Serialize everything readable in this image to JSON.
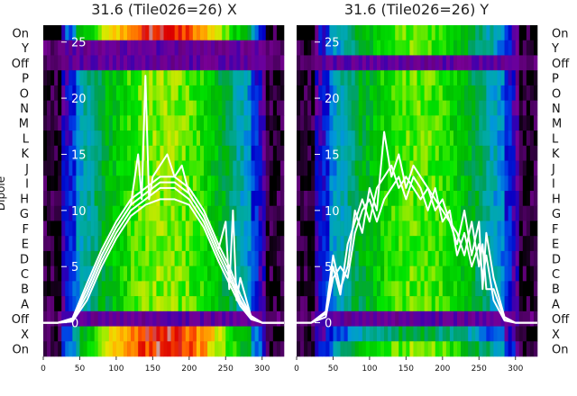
{
  "chart_data": [
    {
      "type": "heatmap",
      "title": "31.6 (Tile026=26) X",
      "ylabel": "Dipole",
      "x_ticks": [
        0,
        50,
        100,
        150,
        200,
        250,
        300
      ],
      "xlim": [
        0,
        330
      ],
      "row_labels": [
        "On",
        "Y",
        "Off",
        "P",
        "O",
        "N",
        "M",
        "L",
        "K",
        "J",
        "I",
        "H",
        "G",
        "F",
        "E",
        "D",
        "C",
        "B",
        "A",
        "Off",
        "X",
        "On"
      ],
      "overlay_ticks": [
        0,
        5,
        10,
        15,
        20,
        25
      ],
      "overlay_ylim": [
        -3,
        26.5
      ],
      "overlay_lines": [
        {
          "x": [
            0,
            20,
            40,
            60,
            80,
            100,
            120,
            140,
            160,
            180,
            200,
            220,
            240,
            255,
            270,
            285,
            300,
            330
          ],
          "y": [
            0,
            0,
            0.3,
            3,
            6,
            8.5,
            10.5,
            11.5,
            12.5,
            12.5,
            11.5,
            9.5,
            6.5,
            4.5,
            2,
            0.5,
            0,
            0
          ]
        },
        {
          "x": [
            0,
            20,
            40,
            60,
            80,
            100,
            120,
            140,
            160,
            180,
            200,
            220,
            240,
            255,
            270,
            285,
            300,
            330
          ],
          "y": [
            0,
            0,
            0.2,
            2.5,
            5.5,
            8,
            10,
            11,
            12,
            12,
            11,
            9,
            6,
            4,
            1.8,
            0.4,
            0,
            0
          ]
        },
        {
          "x": [
            0,
            20,
            40,
            60,
            80,
            100,
            120,
            140,
            160,
            180,
            200,
            220,
            240,
            255,
            270,
            285,
            300,
            330
          ],
          "y": [
            0,
            0,
            0.1,
            2,
            5,
            7.5,
            9.5,
            10.5,
            11,
            11,
            10.5,
            8.5,
            5.5,
            3.5,
            1.5,
            0.3,
            0,
            0
          ]
        },
        {
          "x": [
            0,
            20,
            40,
            60,
            80,
            100,
            120,
            140,
            160,
            180,
            200,
            220,
            240,
            255,
            270,
            285,
            300,
            330
          ],
          "y": [
            0,
            0,
            0.4,
            3.5,
            6.5,
            9,
            11,
            12,
            13,
            13,
            12,
            10,
            7,
            5,
            2.5,
            0.6,
            0,
            0
          ]
        },
        {
          "x": [
            0,
            20,
            40,
            60,
            80,
            100,
            120,
            130,
            135,
            140,
            145,
            150,
            160,
            170,
            180,
            190,
            200,
            220,
            240,
            250,
            255,
            260,
            265,
            270,
            285,
            300,
            330
          ],
          "y": [
            0,
            0,
            0.3,
            3,
            6,
            8.5,
            10.5,
            15,
            11,
            22,
            11,
            13,
            14,
            15,
            13,
            14,
            11.5,
            9.5,
            6.5,
            9,
            3,
            10,
            2,
            4,
            0.5,
            0,
            0
          ]
        }
      ],
      "heat_bands": [
        {
          "rows": [
            "On"
          ],
          "level": 0.85
        },
        {
          "rows": [
            "Y",
            "Off"
          ],
          "level": 0.02
        },
        {
          "rows": [
            "P",
            "O",
            "N",
            "M",
            "L",
            "K",
            "J",
            "I",
            "H",
            "G",
            "F",
            "E",
            "D",
            "C",
            "B",
            "A"
          ],
          "level": 0.45
        },
        {
          "rows": [
            "Off"
          ],
          "level": 0.02
        },
        {
          "rows": [
            "X",
            "On"
          ],
          "level": 0.85
        }
      ]
    },
    {
      "type": "heatmap",
      "title": "31.6 (Tile026=26) Y",
      "x_ticks": [
        0,
        50,
        100,
        150,
        200,
        250,
        300
      ],
      "xlim": [
        0,
        330
      ],
      "row_labels": [
        "On",
        "Y",
        "Off",
        "P",
        "O",
        "N",
        "M",
        "L",
        "K",
        "J",
        "I",
        "H",
        "G",
        "F",
        "E",
        "D",
        "C",
        "B",
        "A",
        "Off",
        "X",
        "On"
      ],
      "overlay_ticks": [
        0,
        5,
        10,
        15,
        20,
        25
      ],
      "overlay_ylim": [
        -3,
        26.5
      ],
      "overlay_lines": [
        {
          "x": [
            0,
            20,
            40,
            50,
            60,
            70,
            80,
            90,
            100,
            110,
            120,
            130,
            140,
            150,
            160,
            170,
            180,
            190,
            200,
            210,
            220,
            230,
            240,
            250,
            255,
            260,
            270,
            285,
            300,
            330
          ],
          "y": [
            0,
            0,
            1,
            6,
            3,
            5,
            10,
            8,
            12,
            10,
            17,
            13,
            15,
            12,
            14,
            13,
            12,
            11,
            10,
            9,
            7,
            10,
            6,
            9,
            3,
            8,
            4,
            0.5,
            0,
            0
          ]
        },
        {
          "x": [
            0,
            20,
            40,
            50,
            60,
            70,
            80,
            90,
            100,
            110,
            120,
            130,
            140,
            150,
            160,
            170,
            180,
            190,
            200,
            210,
            220,
            230,
            240,
            250,
            255,
            260,
            270,
            285,
            300,
            330
          ],
          "y": [
            0,
            0,
            0.8,
            5,
            2.5,
            7,
            9,
            11,
            9,
            12,
            13,
            14,
            12,
            13,
            12,
            11,
            12,
            10,
            11,
            9,
            8,
            6,
            9,
            5,
            7,
            3,
            3,
            0.3,
            0,
            0
          ]
        },
        {
          "x": [
            0,
            20,
            40,
            50,
            60,
            70,
            80,
            90,
            100,
            110,
            120,
            130,
            140,
            150,
            160,
            170,
            180,
            190,
            200,
            210,
            220,
            230,
            240,
            250,
            255,
            260,
            270,
            285,
            300,
            330
          ],
          "y": [
            0,
            0,
            0.5,
            4,
            5,
            4,
            8,
            10,
            11,
            9,
            11,
            12,
            13,
            11,
            13,
            12,
            10,
            12,
            9,
            10,
            6,
            8,
            5,
            7,
            4,
            6,
            2,
            0.2,
            0,
            0
          ]
        }
      ],
      "heat_bands": [
        {
          "rows": [
            "On",
            "Y"
          ],
          "level": 0.4
        },
        {
          "rows": [
            "Off"
          ],
          "level": 0.02
        },
        {
          "rows": [
            "P",
            "O",
            "N",
            "M",
            "L",
            "K",
            "J",
            "I",
            "H",
            "G",
            "F",
            "E",
            "D",
            "C",
            "B",
            "A"
          ],
          "level": 0.4
        },
        {
          "rows": [
            "Off"
          ],
          "level": 0.02
        },
        {
          "rows": [
            "X"
          ],
          "level": 0.15
        },
        {
          "rows": [
            "On"
          ],
          "level": 0.45
        }
      ]
    }
  ]
}
